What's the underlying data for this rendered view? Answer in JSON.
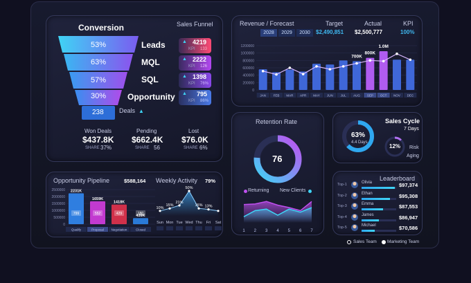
{
  "funnel": {
    "title": "Conversion",
    "subtitle": "Sales Funnel",
    "stages": [
      {
        "pct": "53%",
        "name": "Leads",
        "value": "4219",
        "kpi_label": "KPI",
        "kpi": "133"
      },
      {
        "pct": "63%",
        "name": "MQL",
        "value": "2222",
        "kpi_label": "KPI",
        "kpi": "126"
      },
      {
        "pct": "57%",
        "name": "SQL",
        "value": "1398",
        "kpi_label": "KPI",
        "kpi": "76%"
      },
      {
        "pct": "30%",
        "name": "Opportunity",
        "value": "795",
        "kpi_label": "KPI",
        "kpi": "86%"
      }
    ],
    "deals_value": "238",
    "deals_label": "Deals",
    "summary": [
      {
        "label": "Won Deals",
        "value": "$437.8K",
        "share_label": "SHARE",
        "share": "37%"
      },
      {
        "label": "Pending",
        "value": "$662.4K",
        "share_label": "SHARE",
        "share": "56"
      },
      {
        "label": "Lost",
        "value": "$76.0K",
        "share_label": "SHARE",
        "share": "6%"
      }
    ]
  },
  "revenue": {
    "title": "Revenue / Forecast",
    "years": [
      "2028",
      "2029",
      "2030"
    ],
    "target_label": "Target",
    "target_value": "$2,490,851",
    "actual_label": "Actual",
    "actual_value": "$2,500,777",
    "kpi_label": "KPI",
    "kpi_value": "100%",
    "colors": {
      "bar": "#3f67d8",
      "highlight": "#b05cf0",
      "line": "#d9b8ff"
    }
  },
  "retention": {
    "title": "Retention Rate",
    "value": "76",
    "legend_returning": "Returning",
    "legend_new": "New Clients"
  },
  "sales_cycle": {
    "title": "Sales Cycle",
    "days": "7 Days",
    "ring_pct": "63%",
    "ring_days": "4.4 Days",
    "risk_pct": "12%",
    "risk_label": "Risk",
    "aging_label": "Aging"
  },
  "pipeline": {
    "title": "Opportunity Pipeline",
    "total": "$588,164"
  },
  "weekly": {
    "title": "Weekly Activity",
    "pct": "79%"
  },
  "leaderboard": {
    "title": "Leaderboard",
    "rows": [
      {
        "rank": "Top-1",
        "name": "Olivia",
        "value": "$97,374",
        "fill": 0.95
      },
      {
        "rank": "Top-2",
        "name": "Ethan",
        "value": "$95,308",
        "fill": 0.82
      },
      {
        "rank": "Top-3",
        "name": "Emma",
        "value": "$87,553",
        "fill": 0.62
      },
      {
        "rank": "Top-4",
        "name": "James",
        "value": "$86,947",
        "fill": 0.5
      },
      {
        "rank": "Top-5",
        "name": "Michael",
        "value": "$70,586",
        "fill": 0.38
      }
    ]
  },
  "footer": {
    "sales_team": "Sales Team",
    "marketing_team": "Marketing Team"
  },
  "chart_data": [
    {
      "type": "bar",
      "name": "revenue-forecast",
      "categories": [
        "JAN",
        "FEB",
        "MAR",
        "APR",
        "MAY",
        "JUN",
        "JUL",
        "AUG",
        "SEP",
        "OCT",
        "NOV",
        "DEC"
      ],
      "series": [
        {
          "name": "bars",
          "values": [
            560000,
            480000,
            550000,
            500000,
            710000,
            690000,
            800000,
            780000,
            870000,
            1050000,
            820000,
            820000
          ]
        },
        {
          "name": "line",
          "values": [
            510000,
            420000,
            600000,
            430000,
            640000,
            560000,
            640000,
            720000,
            800000,
            780000,
            980000,
            820000
          ]
        }
      ],
      "annotations": [
        "700K",
        "800K",
        "1.0M"
      ],
      "yticks": [
        "0",
        "200000",
        "400000",
        "600000",
        "800000",
        "1000000",
        "1200000"
      ],
      "ylim": [
        0,
        1200000
      ]
    },
    {
      "type": "area",
      "name": "retention",
      "x": [
        1,
        2,
        3,
        4,
        5,
        6,
        7
      ],
      "series": [
        {
          "name": "Returning",
          "values": [
            60,
            62,
            70,
            58,
            50,
            40,
            70
          ]
        },
        {
          "name": "New Clients",
          "values": [
            20,
            40,
            45,
            25,
            45,
            35,
            50
          ]
        }
      ],
      "xticks": [
        "1",
        "2",
        "3",
        "4",
        "5",
        "6",
        "7"
      ]
    },
    {
      "type": "bar",
      "name": "opportunity-pipeline",
      "categories": [
        "Qualify",
        "Proposal",
        "Negotiation",
        "Closed"
      ],
      "values": [
        2231000,
        1659000,
        1418000,
        439000
      ],
      "bar_labels": [
        "2231K",
        "1659K",
        "1418K",
        "439K"
      ],
      "inner_labels": [
        "799",
        "552",
        "429",
        "180"
      ],
      "yticks": [
        "0",
        "500000",
        "1000000",
        "1500000",
        "2000000",
        "2500000"
      ],
      "ylim": [
        0,
        2500000
      ]
    },
    {
      "type": "line",
      "name": "weekly-activity",
      "categories": [
        "Sun",
        "Mon",
        "Tue",
        "Wed",
        "Thu",
        "Fri",
        "Sat"
      ],
      "values": [
        10,
        15,
        21,
        50,
        15,
        13,
        10
      ],
      "point_labels": [
        "10%",
        "15%",
        "21%",
        "50%",
        "15%",
        "13%",
        ""
      ]
    }
  ]
}
